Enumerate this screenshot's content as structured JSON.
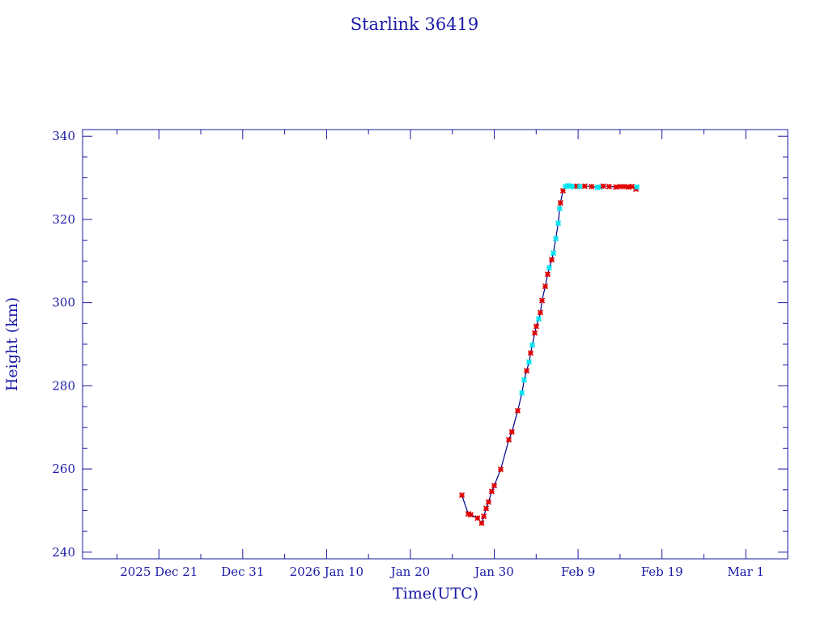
{
  "chart_data": {
    "type": "scatter",
    "title": "Starlink 36419",
    "xlabel": "Time(UTC)",
    "ylabel": "Height (km)",
    "x_units": "days relative to 2026 Jan 30 00:00 UTC",
    "xlim": [
      -43.6,
      -22.0
    ],
    "xlim_days": [
      -49.1,
      35.0
    ],
    "ylim": [
      238.4,
      341.6
    ],
    "grid": false,
    "x_ticks": [
      {
        "day": -40,
        "label": "2025 Dec 21"
      },
      {
        "day": -30,
        "label": "Dec 31"
      },
      {
        "day": -20,
        "label": "2026 Jan 10"
      },
      {
        "day": -10,
        "label": "Jan 20"
      },
      {
        "day": 0,
        "label": "Jan 30"
      },
      {
        "day": 10,
        "label": "Feb  9"
      },
      {
        "day": 20,
        "label": "Feb 19"
      },
      {
        "day": 30,
        "label": "Mar  1"
      }
    ],
    "y_ticks": [
      {
        "value": 240,
        "label": "240"
      },
      {
        "value": 260,
        "label": "260"
      },
      {
        "value": 280,
        "label": "280"
      },
      {
        "value": 300,
        "label": "300"
      },
      {
        "value": 320,
        "label": "320"
      },
      {
        "value": 340,
        "label": "340"
      }
    ],
    "colors": {
      "axis": "#1a1aa6",
      "line": "#00008b",
      "red": "#e00000",
      "cyan": "#00e5f0"
    },
    "points": [
      [
        -3.86,
        253.7,
        "r"
      ],
      [
        -3.1,
        249.2,
        "r"
      ],
      [
        -2.8,
        249.0,
        "r"
      ],
      [
        -2.0,
        248.2,
        "r"
      ],
      [
        -1.5,
        247.0,
        "r"
      ],
      [
        -1.25,
        248.6,
        "r"
      ],
      [
        -0.97,
        250.5,
        "r"
      ],
      [
        -0.68,
        252.1,
        "r"
      ],
      [
        -0.3,
        254.6,
        "r"
      ],
      [
        0.0,
        256.0,
        "r"
      ],
      [
        0.77,
        259.9,
        "r"
      ],
      [
        1.74,
        267.0,
        "r"
      ],
      [
        2.1,
        268.9,
        "r"
      ],
      [
        2.8,
        274.0,
        "r"
      ],
      [
        3.3,
        278.3,
        "c"
      ],
      [
        3.57,
        281.4,
        "c"
      ],
      [
        3.86,
        283.6,
        "r"
      ],
      [
        4.15,
        285.7,
        "c"
      ],
      [
        4.34,
        287.9,
        "r"
      ],
      [
        4.54,
        289.8,
        "c"
      ],
      [
        4.83,
        292.7,
        "r"
      ],
      [
        5.02,
        294.3,
        "r"
      ],
      [
        5.3,
        296.1,
        "c"
      ],
      [
        5.5,
        297.6,
        "r"
      ],
      [
        5.7,
        300.5,
        "r"
      ],
      [
        6.08,
        303.9,
        "r"
      ],
      [
        6.37,
        306.8,
        "r"
      ],
      [
        6.56,
        308.4,
        "c"
      ],
      [
        6.85,
        310.3,
        "r"
      ],
      [
        7.05,
        311.9,
        "c"
      ],
      [
        7.34,
        315.4,
        "c"
      ],
      [
        7.63,
        319.1,
        "c"
      ],
      [
        7.8,
        322.6,
        "c"
      ],
      [
        7.9,
        324.0,
        "r"
      ],
      [
        8.2,
        326.9,
        "r"
      ],
      [
        8.5,
        327.9,
        "c"
      ],
      [
        8.8,
        328.1,
        "c"
      ],
      [
        9.1,
        328.0,
        "c"
      ],
      [
        9.4,
        327.9,
        "c"
      ],
      [
        9.85,
        328.0,
        "r"
      ],
      [
        10.2,
        327.9,
        "c"
      ],
      [
        10.8,
        328.0,
        "r"
      ],
      [
        11.6,
        327.9,
        "r"
      ],
      [
        12.3,
        327.7,
        "c"
      ],
      [
        12.6,
        327.8,
        "c"
      ],
      [
        13.0,
        328.0,
        "r"
      ],
      [
        13.7,
        327.9,
        "r"
      ],
      [
        14.5,
        327.8,
        "r"
      ],
      [
        15.0,
        327.9,
        "r"
      ],
      [
        15.5,
        327.9,
        "r"
      ],
      [
        16.0,
        327.8,
        "r"
      ],
      [
        16.4,
        327.9,
        "r"
      ],
      [
        16.9,
        327.3,
        "r"
      ],
      [
        17.0,
        327.8,
        "c"
      ]
    ]
  }
}
